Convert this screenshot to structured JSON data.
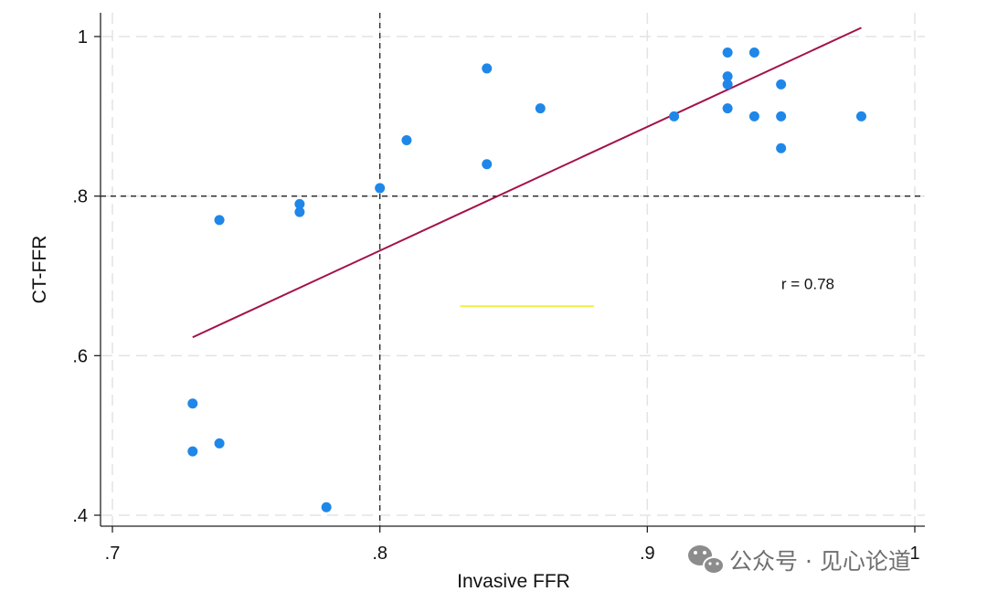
{
  "chart_data": {
    "type": "scatter",
    "title": "",
    "xlabel": "Invasive FFR",
    "ylabel": "CT-FFR",
    "xlim": [
      0.7,
      1.0
    ],
    "ylim": [
      0.4,
      1.0
    ],
    "x_ticks": [
      {
        "value": 0.7,
        "label": ".7"
      },
      {
        "value": 0.8,
        "label": ".8"
      },
      {
        "value": 0.9,
        "label": ".9"
      },
      {
        "value": 1.0,
        "label": "1"
      }
    ],
    "y_ticks": [
      {
        "value": 0.4,
        "label": ".4"
      },
      {
        "value": 0.6,
        "label": ".6"
      },
      {
        "value": 0.8,
        "label": ".8"
      },
      {
        "value": 1.0,
        "label": "1"
      }
    ],
    "grid": true,
    "points": [
      {
        "x": 0.73,
        "y": 0.54
      },
      {
        "x": 0.73,
        "y": 0.48
      },
      {
        "x": 0.74,
        "y": 0.49
      },
      {
        "x": 0.74,
        "y": 0.77
      },
      {
        "x": 0.77,
        "y": 0.79
      },
      {
        "x": 0.77,
        "y": 0.78
      },
      {
        "x": 0.78,
        "y": 0.41
      },
      {
        "x": 0.8,
        "y": 0.81
      },
      {
        "x": 0.81,
        "y": 0.87
      },
      {
        "x": 0.84,
        "y": 0.96
      },
      {
        "x": 0.84,
        "y": 0.84
      },
      {
        "x": 0.86,
        "y": 0.91
      },
      {
        "x": 0.91,
        "y": 0.9
      },
      {
        "x": 0.93,
        "y": 0.98
      },
      {
        "x": 0.93,
        "y": 0.95
      },
      {
        "x": 0.93,
        "y": 0.94
      },
      {
        "x": 0.93,
        "y": 0.91
      },
      {
        "x": 0.94,
        "y": 0.98
      },
      {
        "x": 0.94,
        "y": 0.9
      },
      {
        "x": 0.95,
        "y": 0.94
      },
      {
        "x": 0.95,
        "y": 0.9
      },
      {
        "x": 0.95,
        "y": 0.86
      },
      {
        "x": 0.98,
        "y": 0.9
      }
    ],
    "fit_line": {
      "x1": 0.73,
      "y1": 0.623,
      "x2": 0.98,
      "y2": 1.011
    },
    "reference_lines": {
      "vertical_x": 0.8,
      "horizontal_y": 0.8
    },
    "highlight_segment": {
      "x1": 0.83,
      "x2": 0.88,
      "y": 0.662
    },
    "annotation": "r = 0.78",
    "annotation_position": {
      "x": 0.96,
      "y": 0.69
    }
  },
  "colors": {
    "points": "#1f87e8",
    "fit_line": "#a3124a",
    "reference_lines": "#222222",
    "grid": "#e3e3e3",
    "axis": "#222222",
    "highlight_segment": "#f2ef3a"
  },
  "watermark": {
    "icon": "wechat-icon",
    "text": "公众号 · 见心论道"
  }
}
